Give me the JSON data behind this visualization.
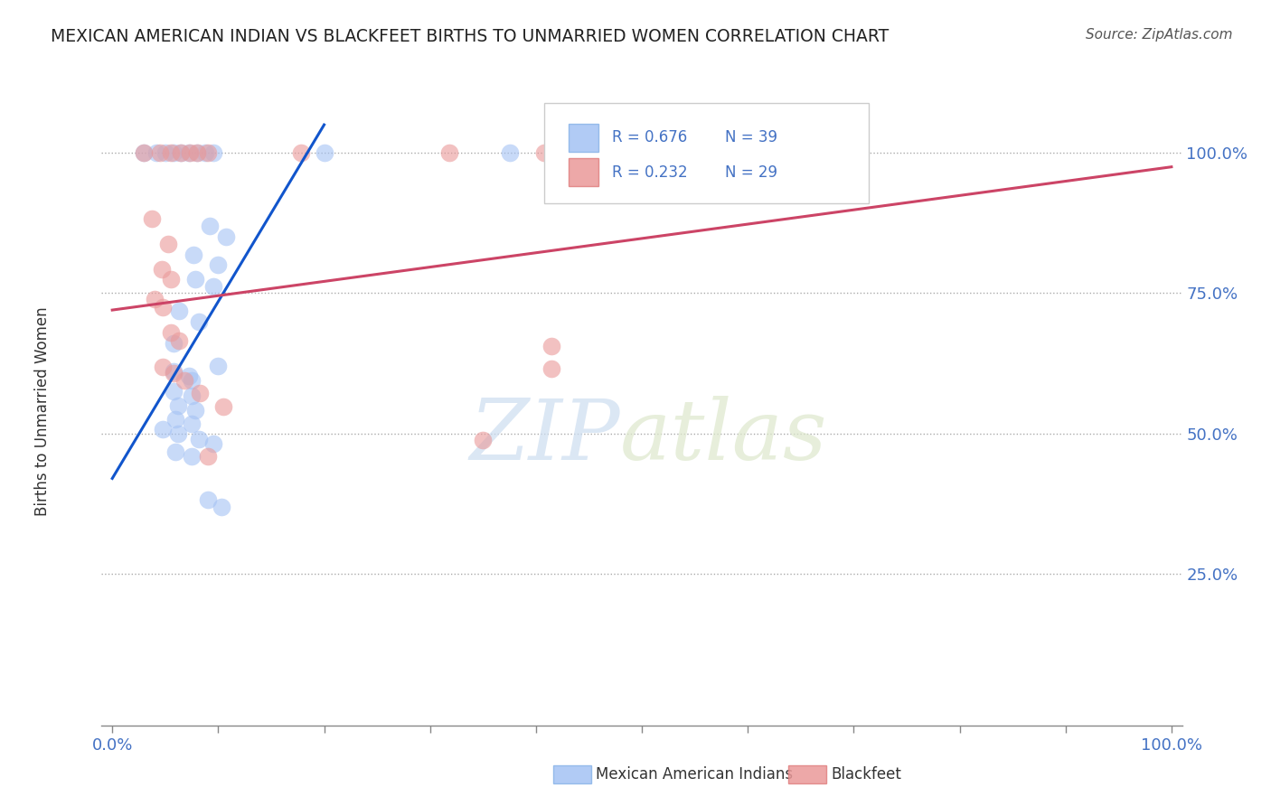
{
  "title": "MEXICAN AMERICAN INDIAN VS BLACKFEET BIRTHS TO UNMARRIED WOMEN CORRELATION CHART",
  "source": "Source: ZipAtlas.com",
  "ylabel": "Births to Unmarried Women",
  "y_tick_values": [
    0.25,
    0.5,
    0.75,
    1.0
  ],
  "legend_labels": [
    "Mexican American Indians",
    "Blackfeet"
  ],
  "legend_r_blue": "R = 0.676",
  "legend_n_blue": "N = 39",
  "legend_r_pink": "R = 0.232",
  "legend_n_pink": "N = 29",
  "blue_color": "#a4c2f4",
  "pink_color": "#ea9999",
  "blue_line_color": "#1155cc",
  "pink_line_color": "#cc4466",
  "blue_points": [
    [
      0.03,
      1.0
    ],
    [
      0.042,
      1.0
    ],
    [
      0.05,
      1.0
    ],
    [
      0.058,
      1.0
    ],
    [
      0.065,
      1.0
    ],
    [
      0.072,
      1.0
    ],
    [
      0.08,
      1.0
    ],
    [
      0.088,
      1.0
    ],
    [
      0.095,
      1.0
    ],
    [
      0.2,
      1.0
    ],
    [
      0.375,
      1.0
    ],
    [
      0.468,
      1.0
    ],
    [
      0.092,
      0.87
    ],
    [
      0.107,
      0.85
    ],
    [
      0.077,
      0.818
    ],
    [
      0.1,
      0.8
    ],
    [
      0.078,
      0.775
    ],
    [
      0.095,
      0.762
    ],
    [
      0.063,
      0.718
    ],
    [
      0.082,
      0.7
    ],
    [
      0.058,
      0.66
    ],
    [
      0.058,
      0.61
    ],
    [
      0.072,
      0.602
    ],
    [
      0.075,
      0.595
    ],
    [
      0.058,
      0.575
    ],
    [
      0.075,
      0.568
    ],
    [
      0.062,
      0.55
    ],
    [
      0.078,
      0.542
    ],
    [
      0.06,
      0.525
    ],
    [
      0.075,
      0.518
    ],
    [
      0.048,
      0.508
    ],
    [
      0.062,
      0.5
    ],
    [
      0.082,
      0.49
    ],
    [
      0.095,
      0.482
    ],
    [
      0.06,
      0.468
    ],
    [
      0.075,
      0.46
    ],
    [
      0.1,
      0.62
    ],
    [
      0.09,
      0.382
    ],
    [
      0.103,
      0.37
    ]
  ],
  "pink_points": [
    [
      0.03,
      1.0
    ],
    [
      0.045,
      1.0
    ],
    [
      0.055,
      1.0
    ],
    [
      0.065,
      1.0
    ],
    [
      0.073,
      1.0
    ],
    [
      0.08,
      1.0
    ],
    [
      0.09,
      1.0
    ],
    [
      0.178,
      1.0
    ],
    [
      0.318,
      1.0
    ],
    [
      0.408,
      1.0
    ],
    [
      0.462,
      1.0
    ],
    [
      0.652,
      1.0
    ],
    [
      0.037,
      0.882
    ],
    [
      0.053,
      0.838
    ],
    [
      0.047,
      0.793
    ],
    [
      0.055,
      0.775
    ],
    [
      0.04,
      0.74
    ],
    [
      0.048,
      0.725
    ],
    [
      0.055,
      0.68
    ],
    [
      0.063,
      0.665
    ],
    [
      0.048,
      0.618
    ],
    [
      0.058,
      0.608
    ],
    [
      0.068,
      0.595
    ],
    [
      0.083,
      0.572
    ],
    [
      0.105,
      0.548
    ],
    [
      0.35,
      0.488
    ],
    [
      0.09,
      0.46
    ],
    [
      0.415,
      0.655
    ],
    [
      0.415,
      0.615
    ]
  ],
  "blue_line_x0": 0.0,
  "blue_line_y0": 0.42,
  "blue_line_x1": 0.2,
  "blue_line_y1": 1.05,
  "pink_line_x0": 0.0,
  "pink_line_y0": 0.72,
  "pink_line_x1": 1.0,
  "pink_line_y1": 0.975,
  "watermark_zip": "ZIP",
  "watermark_atlas": "atlas",
  "background_color": "#ffffff",
  "grid_color": "#aaaaaa",
  "title_color": "#222222",
  "tick_label_color": "#4472c4",
  "source_color": "#555555",
  "xlim": [
    -0.01,
    1.01
  ],
  "ylim": [
    -0.02,
    1.1
  ]
}
